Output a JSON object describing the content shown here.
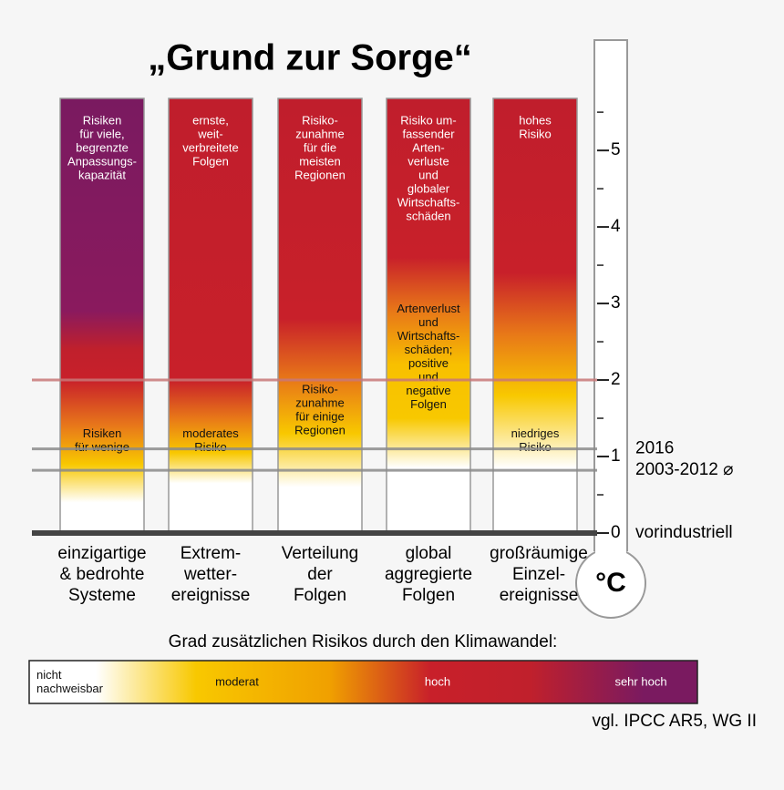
{
  "title": "„Grund zur Sorge“",
  "scale": {
    "range": [
      0,
      5.68
    ],
    "ticks": [
      0,
      1,
      2,
      3,
      4,
      5
    ],
    "minor_ticks": [
      0.5,
      1.5,
      2.5,
      3.5,
      4.5,
      5.5
    ],
    "unit": "°C"
  },
  "reference_lines": [
    {
      "value": 2,
      "color": "#c87878",
      "label": null
    },
    {
      "value": 1.1,
      "color": "#8a8a8a",
      "label": "2016"
    },
    {
      "value": 0.82,
      "color": "#8a8a8a",
      "label": "2003-2012 ⌀"
    },
    {
      "value": 0,
      "color": "#444444",
      "label": "vorindustriell"
    }
  ],
  "columns": [
    {
      "label": [
        "einzigartige",
        "& bedrohte",
        "Systeme"
      ],
      "top_text": [
        "Risiken",
        "für viele,",
        "begrenzte",
        "Anpassungs-",
        "kapazität"
      ],
      "bottom_text": [
        "Risiken",
        "für wenige"
      ],
      "bottom_text_at": 1.2,
      "gradient": [
        [
          0.4,
          "#ffffff"
        ],
        [
          0.9,
          "#f8c800"
        ],
        [
          1.4,
          "#e8781a"
        ],
        [
          2.0,
          "#c8202a"
        ],
        [
          2.4,
          "#c0202c"
        ],
        [
          2.9,
          "#8a1a5e"
        ],
        [
          5.68,
          "#7a1a60"
        ]
      ]
    },
    {
      "label": [
        "Extrem-",
        "wetter-",
        "ereignisse"
      ],
      "top_text": [
        "ernste,",
        "weit-",
        "verbreitete",
        "Folgen"
      ],
      "bottom_text": [
        "moderates",
        "Risiko"
      ],
      "bottom_text_at": 1.2,
      "gradient": [
        [
          0.65,
          "#ffffff"
        ],
        [
          1.05,
          "#f8c800"
        ],
        [
          1.5,
          "#e87818"
        ],
        [
          2.0,
          "#c8202a"
        ],
        [
          5.68,
          "#c01e2c"
        ]
      ]
    },
    {
      "label": [
        "Verteilung",
        "der",
        "Folgen"
      ],
      "top_text": [
        "Risiko-",
        "zunahme",
        "für die",
        "meisten",
        "Regionen"
      ],
      "bottom_text": [
        "Risiko-",
        "zunahme",
        "für einige",
        "Regionen"
      ],
      "bottom_text_at": 1.6,
      "gradient": [
        [
          0.6,
          "#ffffff"
        ],
        [
          1.3,
          "#f8c800"
        ],
        [
          2.0,
          "#e87818"
        ],
        [
          2.8,
          "#c8202a"
        ],
        [
          5.68,
          "#c01e2c"
        ]
      ]
    },
    {
      "label": [
        "global",
        "aggregierte",
        "Folgen"
      ],
      "top_text": [
        "Risiko um-",
        "fassender",
        "Arten-",
        "verluste",
        "und",
        "globaler",
        "Wirtschafts-",
        "schäden"
      ],
      "bottom_text": [
        "Artenverlust",
        "und",
        "Wirtschafts-",
        "schäden;",
        "positive",
        "und",
        "negative",
        "Folgen"
      ],
      "bottom_text_at": 2.3,
      "gradient": [
        [
          0.85,
          "#ffffff"
        ],
        [
          1.5,
          "#f8c800"
        ],
        [
          2.2,
          "#f8c000"
        ],
        [
          2.9,
          "#e87818"
        ],
        [
          3.6,
          "#c8202a"
        ],
        [
          5.68,
          "#c01e2c"
        ]
      ]
    },
    {
      "label": [
        "großräumige",
        "Einzel-",
        "ereignisse"
      ],
      "top_text": [
        "hohes",
        "Risiko"
      ],
      "bottom_text": [
        "niedriges",
        "Risiko"
      ],
      "bottom_text_at": 1.2,
      "gradient": [
        [
          0.85,
          "#ffffff"
        ],
        [
          1.8,
          "#f8c800"
        ],
        [
          2.6,
          "#e87818"
        ],
        [
          3.4,
          "#c8202a"
        ],
        [
          5.68,
          "#c01e2c"
        ]
      ]
    }
  ],
  "legend": {
    "title": "Grad zusätzlichen Risikos durch den Klimawandel:",
    "items": [
      [
        "nicht",
        "nachweisbar"
      ],
      [
        "moderat"
      ],
      [
        "hoch"
      ],
      [
        "sehr hoch"
      ]
    ]
  },
  "source": "vgl. IPCC AR5, WG II"
}
